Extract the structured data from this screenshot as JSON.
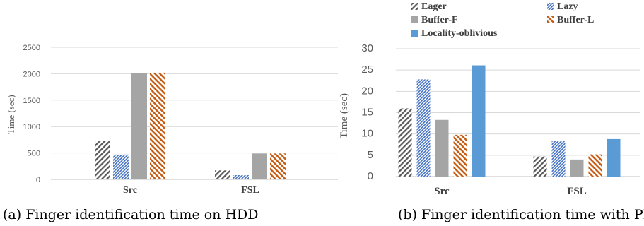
{
  "chart_data": [
    {
      "type": "bar",
      "title": "",
      "caption": "(a) Finger identification time on HDD",
      "ylabel": "Time (sec)",
      "xlabel": "",
      "ylim": [
        0,
        2500
      ],
      "yticks": [
        "0",
        "500",
        "1000",
        "1500",
        "2000",
        "2500"
      ],
      "categories": [
        "Src",
        "FSL"
      ],
      "grid": true,
      "series": [
        {
          "name": "Eager",
          "values": [
            725,
            170
          ]
        },
        {
          "name": "Lazy",
          "values": [
            470,
            80
          ]
        },
        {
          "name": "Buffer-F",
          "values": [
            2010,
            490
          ]
        },
        {
          "name": "Buffer-L",
          "values": [
            2020,
            490
          ]
        }
      ]
    },
    {
      "type": "bar",
      "title": "",
      "caption": "(b) Finger identification time with PM",
      "ylabel": "Time (sec)",
      "xlabel": "",
      "ylim": [
        0,
        30
      ],
      "yticks": [
        "0",
        "5",
        "10",
        "15",
        "20",
        "25",
        "30"
      ],
      "categories": [
        "Src",
        "FSL"
      ],
      "grid": true,
      "legend_position": "top",
      "series": [
        {
          "name": "Eager",
          "values": [
            16.0,
            4.7
          ]
        },
        {
          "name": "Lazy",
          "values": [
            22.8,
            8.3
          ]
        },
        {
          "name": "Buffer-F",
          "values": [
            13.3,
            4.0
          ]
        },
        {
          "name": "Buffer-L",
          "values": [
            9.8,
            5.2
          ]
        },
        {
          "name": "Locality-oblivious",
          "values": [
            26.1,
            8.8
          ]
        }
      ]
    }
  ],
  "style": {
    "colors": {
      "Eager": "#595959",
      "Lazy": "#4472c4",
      "Buffer-F": "#a5a5a5",
      "Buffer-L": "#c55a11",
      "Locality-oblivious": "#5b9bd5"
    },
    "patterns": {
      "Eager": "diagonal-hatch",
      "Lazy": "dense-diagonal-hatch",
      "Buffer-F": "solid",
      "Buffer-L": "back-diagonal-hatch",
      "Locality-oblivious": "solid"
    }
  }
}
